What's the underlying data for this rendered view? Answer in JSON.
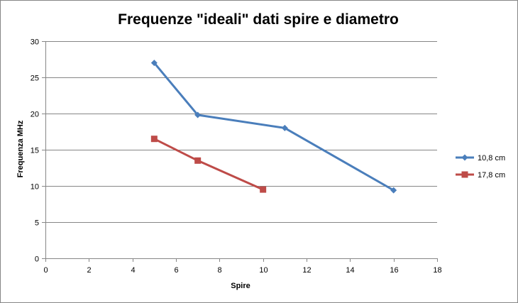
{
  "chart_data": {
    "type": "scatter",
    "title": "Frequenze \"ideali\" dati spire e diametro",
    "xlabel": "Spire",
    "ylabel": "Frequenza MHz",
    "xlim": [
      0,
      18
    ],
    "ylim": [
      0,
      30
    ],
    "xticks": [
      0,
      2,
      4,
      6,
      8,
      10,
      12,
      14,
      16,
      18
    ],
    "yticks": [
      0,
      5,
      10,
      15,
      20,
      25,
      30
    ],
    "grid": "horizontal",
    "legend": "right",
    "series": [
      {
        "name": "10,8 cm",
        "color": "#4A7EBB",
        "marker": "diamond",
        "x": [
          5,
          7,
          11,
          16
        ],
        "y": [
          27,
          19.8,
          18,
          9.4
        ]
      },
      {
        "name": "17,8 cm",
        "color": "#BE4B48",
        "marker": "square",
        "x": [
          5,
          7,
          10
        ],
        "y": [
          16.5,
          13.5,
          9.5
        ]
      }
    ]
  }
}
